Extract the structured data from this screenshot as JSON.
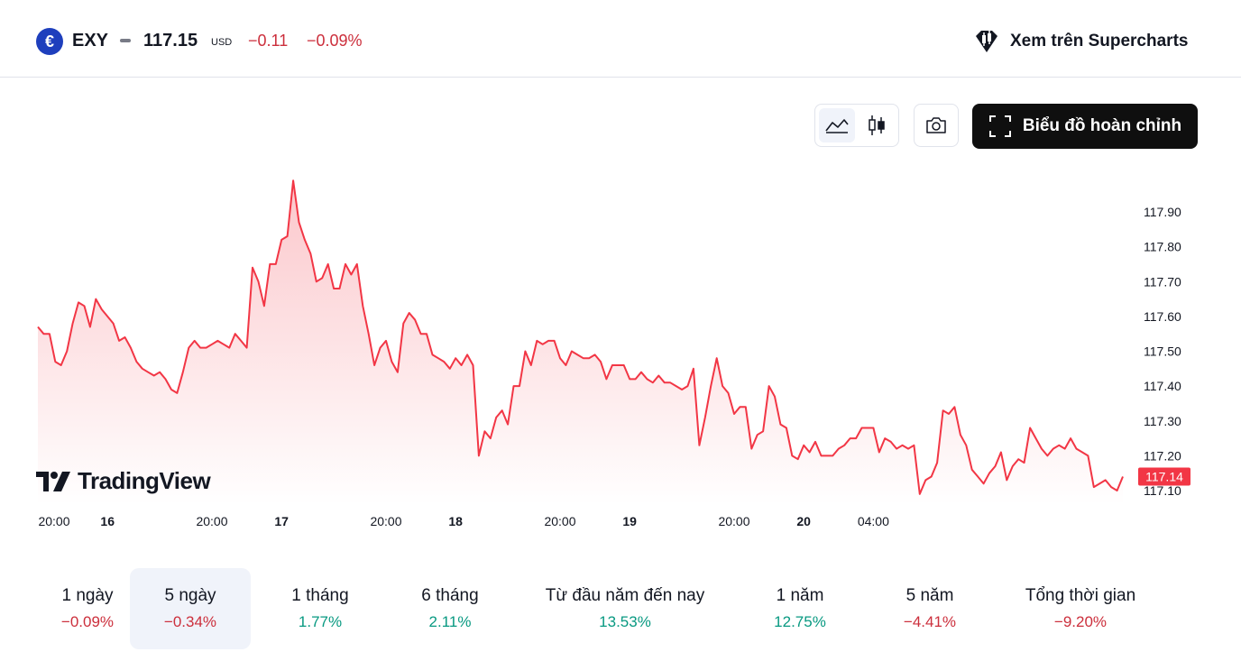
{
  "header": {
    "symbol": "EXY",
    "symbol_icon_text": "€",
    "price": "117.15",
    "currency": "USD",
    "change": "−0.11",
    "change_percent": "−0.09%",
    "supercharts_label": "Xem trên Supercharts"
  },
  "toolbar": {
    "full_chart_label": "Biểu đồ hoàn chỉnh",
    "chart_style_selected": "area"
  },
  "colors": {
    "line": "#f23645",
    "negative": "#cc2f3c",
    "positive": "#089981",
    "last_price_tag": "#f23645"
  },
  "brand": {
    "watermark": "TradingView"
  },
  "chart_data": {
    "type": "area",
    "title": "",
    "xlabel": "",
    "ylabel": "",
    "y_ticks": [
      "117.90",
      "117.80",
      "117.70",
      "117.60",
      "117.50",
      "117.40",
      "117.30",
      "117.20",
      "117.10"
    ],
    "ylim": [
      117.08,
      118.0
    ],
    "x_ticks": [
      {
        "label": "20:00",
        "bold": false,
        "index": 0
      },
      {
        "label": "16",
        "bold": true,
        "index": 12
      },
      {
        "label": "20:00",
        "bold": false,
        "index": 30
      },
      {
        "label": "17",
        "bold": true,
        "index": 42
      },
      {
        "label": "20:00",
        "bold": false,
        "index": 60
      },
      {
        "label": "18",
        "bold": true,
        "index": 72
      },
      {
        "label": "20:00",
        "bold": false,
        "index": 90
      },
      {
        "label": "19",
        "bold": true,
        "index": 102
      },
      {
        "label": "20:00",
        "bold": false,
        "index": 120
      },
      {
        "label": "20",
        "bold": true,
        "index": 132
      },
      {
        "label": "04:00",
        "bold": false,
        "index": 144
      }
    ],
    "last_value_label": "117.14",
    "values": [
      117.57,
      117.55,
      117.55,
      117.47,
      117.46,
      117.5,
      117.58,
      117.64,
      117.63,
      117.57,
      117.65,
      117.62,
      117.6,
      117.58,
      117.53,
      117.54,
      117.51,
      117.47,
      117.45,
      117.44,
      117.43,
      117.44,
      117.42,
      117.39,
      117.38,
      117.44,
      117.51,
      117.53,
      117.51,
      117.51,
      117.52,
      117.53,
      117.52,
      117.51,
      117.55,
      117.53,
      117.51,
      117.74,
      117.7,
      117.63,
      117.75,
      117.75,
      117.82,
      117.83,
      117.99,
      117.87,
      117.82,
      117.78,
      117.7,
      117.71,
      117.75,
      117.68,
      117.68,
      117.75,
      117.72,
      117.75,
      117.63,
      117.55,
      117.46,
      117.51,
      117.53,
      117.47,
      117.44,
      117.58,
      117.61,
      117.59,
      117.55,
      117.55,
      117.49,
      117.48,
      117.47,
      117.45,
      117.48,
      117.46,
      117.49,
      117.46,
      117.2,
      117.27,
      117.25,
      117.31,
      117.33,
      117.29,
      117.4,
      117.4,
      117.5,
      117.46,
      117.53,
      117.52,
      117.53,
      117.53,
      117.48,
      117.46,
      117.5,
      117.49,
      117.48,
      117.48,
      117.49,
      117.47,
      117.42,
      117.46,
      117.46,
      117.46,
      117.42,
      117.42,
      117.44,
      117.42,
      117.41,
      117.43,
      117.41,
      117.41,
      117.4,
      117.39,
      117.4,
      117.45,
      117.23,
      117.31,
      117.4,
      117.48,
      117.4,
      117.38,
      117.32,
      117.34,
      117.34,
      117.22,
      117.26,
      117.27,
      117.4,
      117.37,
      117.29,
      117.28,
      117.2,
      117.19,
      117.23,
      117.21,
      117.24,
      117.2,
      117.2,
      117.2,
      117.22,
      117.23,
      117.25,
      117.25,
      117.28,
      117.28,
      117.28,
      117.21,
      117.25,
      117.24,
      117.22,
      117.23,
      117.22,
      117.23,
      117.09,
      117.13,
      117.14,
      117.18,
      117.33,
      117.32,
      117.34,
      117.26,
      117.23,
      117.16,
      117.14,
      117.12,
      117.15,
      117.17,
      117.21,
      117.13,
      117.17,
      117.19,
      117.18,
      117.28,
      117.25,
      117.22,
      117.2,
      117.22,
      117.23,
      117.22,
      117.25,
      117.22,
      117.21,
      117.2,
      117.11,
      117.12,
      117.13,
      117.11,
      117.1,
      117.14
    ]
  },
  "periods": [
    {
      "label": "1 ngày",
      "value": "−0.09%",
      "sign": "neg"
    },
    {
      "label": "5 ngày",
      "value": "−0.34%",
      "sign": "neg",
      "active": true
    },
    {
      "label": "1 tháng",
      "value": "1.77%",
      "sign": "pos"
    },
    {
      "label": "6 tháng",
      "value": "2.11%",
      "sign": "pos"
    },
    {
      "label": "Từ đầu năm đến nay",
      "value": "13.53%",
      "sign": "pos"
    },
    {
      "label": "1 năm",
      "value": "12.75%",
      "sign": "pos"
    },
    {
      "label": "5 năm",
      "value": "−4.41%",
      "sign": "neg"
    },
    {
      "label": "Tổng thời gian",
      "value": "−9.20%",
      "sign": "neg"
    }
  ]
}
